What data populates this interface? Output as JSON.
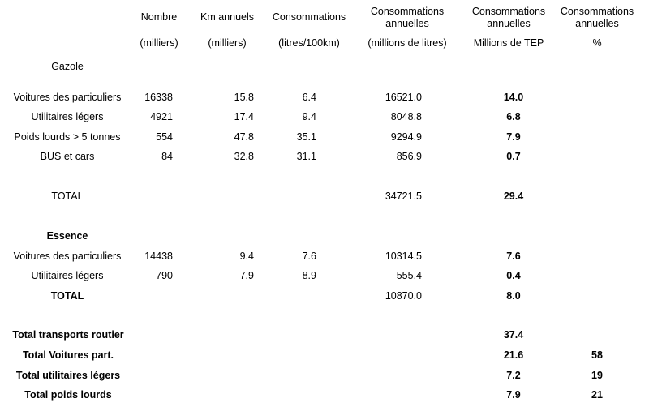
{
  "header": {
    "nombre": [
      "Nombre",
      "(milliers)"
    ],
    "km": [
      "Km annuels",
      "(milliers)"
    ],
    "conso": [
      "Consommations",
      "(litres/100km)"
    ],
    "conso_ann": [
      "Consommations",
      "annuelles",
      "(millions de litres)"
    ],
    "tep": [
      "Consommations",
      "annuelles",
      "Millions de TEP"
    ],
    "pct": [
      "Consommations",
      "annuelles",
      "%"
    ]
  },
  "sections": {
    "gazole": "Gazole",
    "essence": "Essence"
  },
  "gazole_rows": [
    {
      "label": "Voitures des particuliers",
      "nombre": "16338",
      "km": "15.8",
      "conso": "6.4",
      "litres": "16521.0",
      "tep": "14.0"
    },
    {
      "label": "Utilitaires légers",
      "nombre": "4921",
      "km": "17.4",
      "conso": "9.4",
      "litres": "8048.8",
      "tep": "6.8"
    },
    {
      "label": "Poids lourds > 5 tonnes",
      "nombre": "554",
      "km": "47.8",
      "conso": "35.1",
      "litres": "9294.9",
      "tep": "7.9"
    },
    {
      "label": "BUS et cars",
      "nombre": "84",
      "km": "32.8",
      "conso": "31.1",
      "litres": "856.9",
      "tep": "0.7"
    }
  ],
  "gazole_total": {
    "label": "TOTAL",
    "litres": "34721.5",
    "tep": "29.4"
  },
  "essence_rows": [
    {
      "label": "Voitures des particuliers",
      "nombre": "14438",
      "km": "9.4",
      "conso": "7.6",
      "litres": "10314.5",
      "tep": "7.6"
    },
    {
      "label": "Utilitaires légers",
      "nombre": "790",
      "km": "7.9",
      "conso": "8.9",
      "litres": "555.4",
      "tep": "0.4"
    }
  ],
  "essence_total": {
    "label": "TOTAL",
    "litres": "10870.0",
    "tep": "8.0"
  },
  "summary": [
    {
      "label": "Total transports routier",
      "tep": "37.4",
      "pct": ""
    },
    {
      "label": "Total Voitures  part.",
      "tep": "21.6",
      "pct": "58"
    },
    {
      "label": "Total utilitaires légers",
      "tep": "7.2",
      "pct": "19"
    },
    {
      "label": "Total poids lourds",
      "tep": "7.9",
      "pct": "21"
    }
  ]
}
